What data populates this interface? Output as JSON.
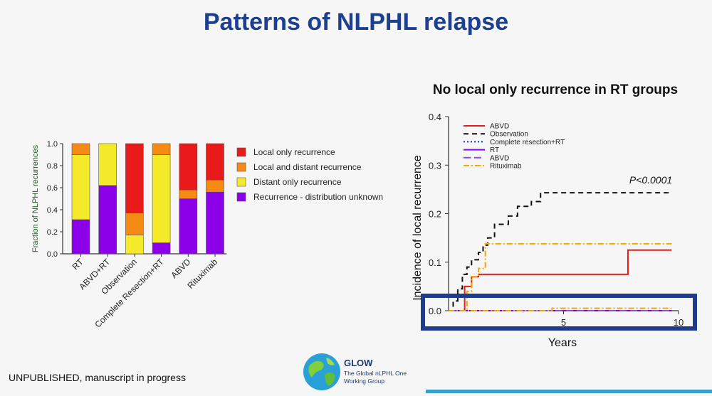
{
  "page": {
    "title": "Patterns of NLPHL relapse",
    "right_title": "No local only recurrence in RT groups",
    "footer": "UNPUBLISHED, manuscript in progress",
    "logo": {
      "icon": "globe-icon",
      "name": "GLOW",
      "subtitle_line1": "The Global nLPHL One",
      "subtitle_line2": "Working Group"
    },
    "colors": {
      "title": "#1d3f8f",
      "highlight_box": "#1f3c8a",
      "accent_line": "#3aa0c8"
    }
  },
  "chart_data": [
    {
      "type": "bar",
      "stacked": true,
      "categories": [
        "RT",
        "ABVD+RT",
        "Observation",
        "Complete Resection+RT",
        "ABVD",
        "Rituximab"
      ],
      "ylabel": "Fraction of NLPHL recurrences",
      "ylim": [
        0,
        1.0
      ],
      "yticks": [
        "0.0",
        "0.2",
        "0.4",
        "0.6",
        "0.8",
        "1.0"
      ],
      "legend_position": "right",
      "series": [
        {
          "name": "Recurrence - distribution unknown",
          "color": "#8b00e8",
          "values": [
            0.31,
            0.62,
            0.0,
            0.1,
            0.5,
            0.56
          ]
        },
        {
          "name": "Distant only recurrence",
          "color": "#f5ea2a",
          "values": [
            0.59,
            0.38,
            0.17,
            0.8,
            0.0,
            0.0
          ]
        },
        {
          "name": "Local and distant recurrence",
          "color": "#f58a14",
          "values": [
            0.1,
            0.0,
            0.2,
            0.1,
            0.08,
            0.11
          ]
        },
        {
          "name": "Local only recurrence",
          "color": "#e81a1a",
          "values": [
            0.0,
            0.0,
            0.63,
            0.0,
            0.42,
            0.33
          ]
        }
      ],
      "legend_order": [
        "Local only recurrence",
        "Local and distant recurrence",
        "Distant only recurrence",
        "Recurrence - distribution unknown"
      ]
    },
    {
      "type": "line",
      "step": true,
      "xlabel": "Years",
      "ylabel": "Incidence of local recurrence",
      "xlim": [
        0,
        10
      ],
      "ylim": [
        0,
        0.4
      ],
      "xticks": [
        "5",
        "10"
      ],
      "yticks": [
        "0.0",
        "0.1",
        "0.2",
        "0.3",
        "0.4"
      ],
      "annotation": "P<0.0001",
      "legend_position": "top-left",
      "series": [
        {
          "name": "ABVD",
          "color": "#e81a1a",
          "dash": "solid",
          "x": [
            0,
            0.7,
            0.7,
            1.0,
            1.0,
            1.3,
            1.3,
            7.8,
            7.8,
            9.7
          ],
          "y": [
            0,
            0,
            0.05,
            0.05,
            0.07,
            0.07,
            0.075,
            0.075,
            0.125,
            0.125
          ]
        },
        {
          "name": "Observation",
          "color": "#111111",
          "dash": "dashed",
          "x": [
            0,
            0.2,
            0.2,
            0.4,
            0.4,
            0.6,
            0.6,
            0.8,
            0.8,
            1.0,
            1.0,
            1.3,
            1.3,
            1.5,
            1.5,
            1.7,
            1.7,
            2.0,
            2.0,
            2.6,
            2.6,
            3.0,
            3.0,
            3.6,
            3.6,
            4.0,
            4.0,
            9.7
          ],
          "y": [
            0,
            0,
            0.02,
            0.02,
            0.045,
            0.045,
            0.075,
            0.075,
            0.09,
            0.09,
            0.105,
            0.105,
            0.12,
            0.12,
            0.135,
            0.135,
            0.15,
            0.15,
            0.178,
            0.178,
            0.195,
            0.195,
            0.215,
            0.215,
            0.225,
            0.225,
            0.243,
            0.243
          ]
        },
        {
          "name": "Complete resection+RT",
          "color": "#1030d0",
          "dash": "dotted",
          "x": [
            0,
            9.7
          ],
          "y": [
            0,
            0
          ]
        },
        {
          "name": "RT",
          "color": "#8b00e8",
          "dash": "solid",
          "x": [
            0,
            9.7
          ],
          "y": [
            0,
            0
          ]
        },
        {
          "name": "ABVD",
          "color": "#8b4cf0",
          "dash": "long-dash",
          "x": [
            0,
            9.7
          ],
          "y": [
            0,
            0
          ]
        },
        {
          "name": "Rituximab",
          "color": "#f5a800",
          "dash": "dash-dot",
          "x": [
            0,
            0.8,
            0.8,
            1.0,
            1.0,
            1.3,
            1.3,
            1.6,
            1.6,
            9.7
          ],
          "y": [
            0,
            0,
            0.04,
            0.04,
            0.07,
            0.07,
            0.087,
            0.087,
            0.138,
            0.138
          ]
        },
        {
          "name": "",
          "color": "#f5a800",
          "dash": "dash-dot",
          "x": [
            0,
            4.5,
            4.5,
            9.7
          ],
          "y": [
            0,
            0,
            0.005,
            0.005
          ]
        }
      ]
    }
  ]
}
